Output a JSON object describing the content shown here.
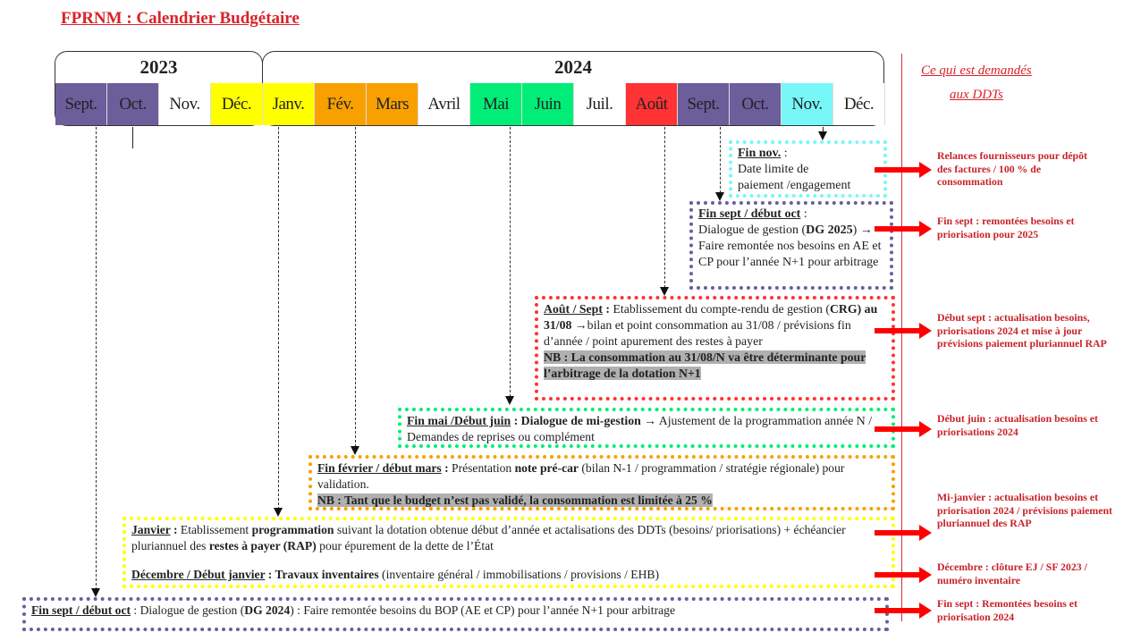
{
  "title": "FPRNM : Calendrier Budgétaire",
  "years": [
    "2023",
    "2024"
  ],
  "months": [
    {
      "label": "Sept.",
      "color": "#6b5e9b"
    },
    {
      "label": "Oct.",
      "color": "#6b5e9b"
    },
    {
      "label": "Nov.",
      "color": "#ffffff"
    },
    {
      "label": "Déc.",
      "color": "#ffff00"
    },
    {
      "label": "Janv.",
      "color": "#ffff00"
    },
    {
      "label": "Fév.",
      "color": "#f8a000"
    },
    {
      "label": "Mars",
      "color": "#f8a000"
    },
    {
      "label": "Avril",
      "color": "#ffffff"
    },
    {
      "label": "Mai",
      "color": "#00ee77"
    },
    {
      "label": "Juin",
      "color": "#00ee77"
    },
    {
      "label": "Juil.",
      "color": "#ffffff"
    },
    {
      "label": "Août",
      "color": "#ff3333"
    },
    {
      "label": "Sept.",
      "color": "#6b5e9b"
    },
    {
      "label": "Oct.",
      "color": "#6b5e9b"
    },
    {
      "label": "Nov.",
      "color": "#77f7f7"
    },
    {
      "label": "Déc.",
      "color": "#ffffff"
    }
  ],
  "ddt_header": [
    "Ce qui est demandés",
    "aux DDTs"
  ],
  "boxes": {
    "fin_nov": {
      "head": "Fin nov.",
      "sep": " :",
      "l1": "Date limite de",
      "l2": "paiement /engagement",
      "color": "#77f7f7"
    },
    "dg2025": {
      "head": "Fin sept / début oct",
      "sep": " :",
      "t1": "Dialogue de gestion (",
      "b1": "DG 2025",
      "t2": ") → Faire remontée nos besoins en AE et CP pour l’année N+1 pour arbitrage",
      "color": "#6b5e9b"
    },
    "aout": {
      "head": "Août / Sept",
      "sep": " : ",
      "t1": "Etablissement du compte-rendu de gestion (",
      "b1": "CRG) au 31/08",
      "t2": " →bilan et point consommation au 31/08 / prévisions fin d’année / point apurement des restes à payer",
      "nb": "NB : La consommation au 31/08/N va être déterminante pour l’arbitrage de la dotation N+1",
      "color": "#ff3333"
    },
    "mai": {
      "head": "Fin mai /Début juin",
      "sep": " : ",
      "b1": "Dialogue de mi-gestion",
      "t1": " → Ajustement de la programmation année N / Demandes de reprises ou complément",
      "color": "#00ee77"
    },
    "fev": {
      "head": "Fin février / début mars",
      "sep": " : ",
      "t1": "Présentation ",
      "b1": "note pré-car",
      "t2": " (bilan N-1 / programmation / stratégie régionale) pour validation.",
      "nb": "NB : Tant que le budget n’est pas validé, la consommation est limitée à 25 %",
      "color": "#f8a000"
    },
    "janv": {
      "head": "Janvier",
      "sep": " : ",
      "t1": "Etablissement ",
      "b1": "programmation",
      "t2": " suivant la dotation obtenue début d’année et actalisations des DDTs (besoins/ priorisations) + échéancier pluriannuel des ",
      "b2": "restes à payer (RAP)",
      "t3": " pour épurement de la dette de l’État",
      "head2": "Décembre / Début janvier",
      "sep2": " : ",
      "b3": "Travaux inventaires",
      "t4": " (inventaire général / immobilisations / provisions / EHB)",
      "color": "#ffff00"
    },
    "dg2024": {
      "head": "Fin sept / début oct",
      "sep": " : ",
      "t1": "Dialogue de gestion (",
      "b1": "DG 2024",
      "t2": ") : Faire remontée besoins du BOP (AE et CP) pour l’année N+1 pour arbitrage",
      "color": "#6b5e9b"
    }
  },
  "ddt_notes": [
    "Relances fournisseurs pour dépôt des factures / 100 % de consommation",
    "Fin sept : remontées besoins et priorisation pour 2025",
    "Début sept : actualisation besoins, priorisations 2024 et mise à jour prévisions paiement pluriannuel RAP",
    "Début juin : actualisation besoins et priorisations 2024",
    "Mi-janvier : actualisation besoins et priorisation 2024 / prévisions paiement pluriannuel des RAP",
    "Décembre : clôture EJ / SF 2023 / numéro inventaire",
    "Fin sept : Remontées besoins et priorisation 2024"
  ]
}
